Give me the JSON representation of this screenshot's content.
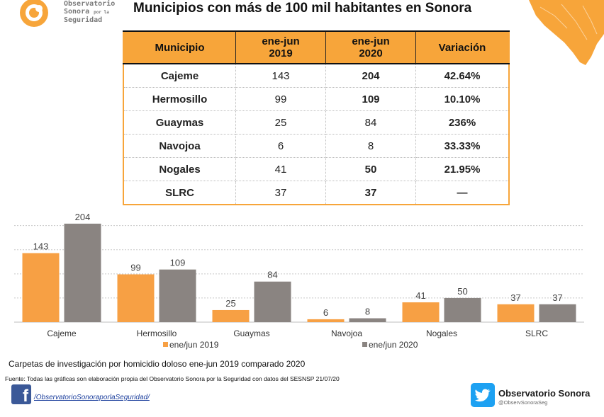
{
  "header": {
    "logo_line1": "Observatorio",
    "logo_line2": "Sonora",
    "logo_small": "por la",
    "logo_line3": "Seguridad",
    "title": "Municipios con más de 100 mil habitantes en Sonora"
  },
  "table": {
    "headers": {
      "municipio": "Municipio",
      "col2019_line1": "ene-jun",
      "col2019_line2": "2019",
      "col2020_line1": "ene-jun",
      "col2020_line2": "2020",
      "variacion": "Variación"
    },
    "rows": [
      {
        "municipio": "Cajeme",
        "v2019": "143",
        "v2020": "204",
        "variacion": "42.64%"
      },
      {
        "municipio": "Hermosillo",
        "v2019": "99",
        "v2020": "109",
        "variacion": "10.10%"
      },
      {
        "municipio": "Guaymas",
        "v2019": "25",
        "v2020": "84",
        "variacion": "236%"
      },
      {
        "municipio": "Navojoa",
        "v2019": "6",
        "v2020": "8",
        "variacion": "33.33%"
      },
      {
        "municipio": "Nogales",
        "v2019": "41",
        "v2020": "50",
        "variacion": "21.95%"
      },
      {
        "municipio": "SLRC",
        "v2019": "37",
        "v2020": "37",
        "variacion": "—"
      }
    ]
  },
  "chart_data": {
    "type": "bar",
    "categories": [
      "Cajeme",
      "Hermosillo",
      "Guaymas",
      "Navojoa",
      "Nogales",
      "SLRC"
    ],
    "series": [
      {
        "name": "ene/jun 2019",
        "values": [
          143,
          99,
          25,
          6,
          41,
          37
        ],
        "color": "#f7a044"
      },
      {
        "name": "ene/jun 2020",
        "values": [
          204,
          109,
          84,
          8,
          50,
          37
        ],
        "color": "#8a8481"
      }
    ],
    "ylim": [
      0,
      220
    ],
    "grid": true,
    "legend": "bottom",
    "data_labels": true
  },
  "caption": "Carpetas de investigación por homicidio doloso ene-jun 2019 comparado 2020",
  "source": "Fuente: Todas las gráficas son elaboración propia del Observatorio Sonora por la Seguridad con datos del SESNSP 21/07/20",
  "footer": {
    "facebook_link": "/ObservatorioSonoraporlaSeguridad/",
    "twitter_name": "Observatorio Sonora",
    "twitter_handle": "@ObservSonoraSeg"
  },
  "colors": {
    "accent": "#f7a53a",
    "variation": "#e8342a",
    "facebook": "#3b5998",
    "twitter": "#1da1f2"
  },
  "icons": {
    "logo": "sun-logo-icon",
    "facebook": "facebook-icon",
    "twitter": "twitter-bird-icon"
  }
}
